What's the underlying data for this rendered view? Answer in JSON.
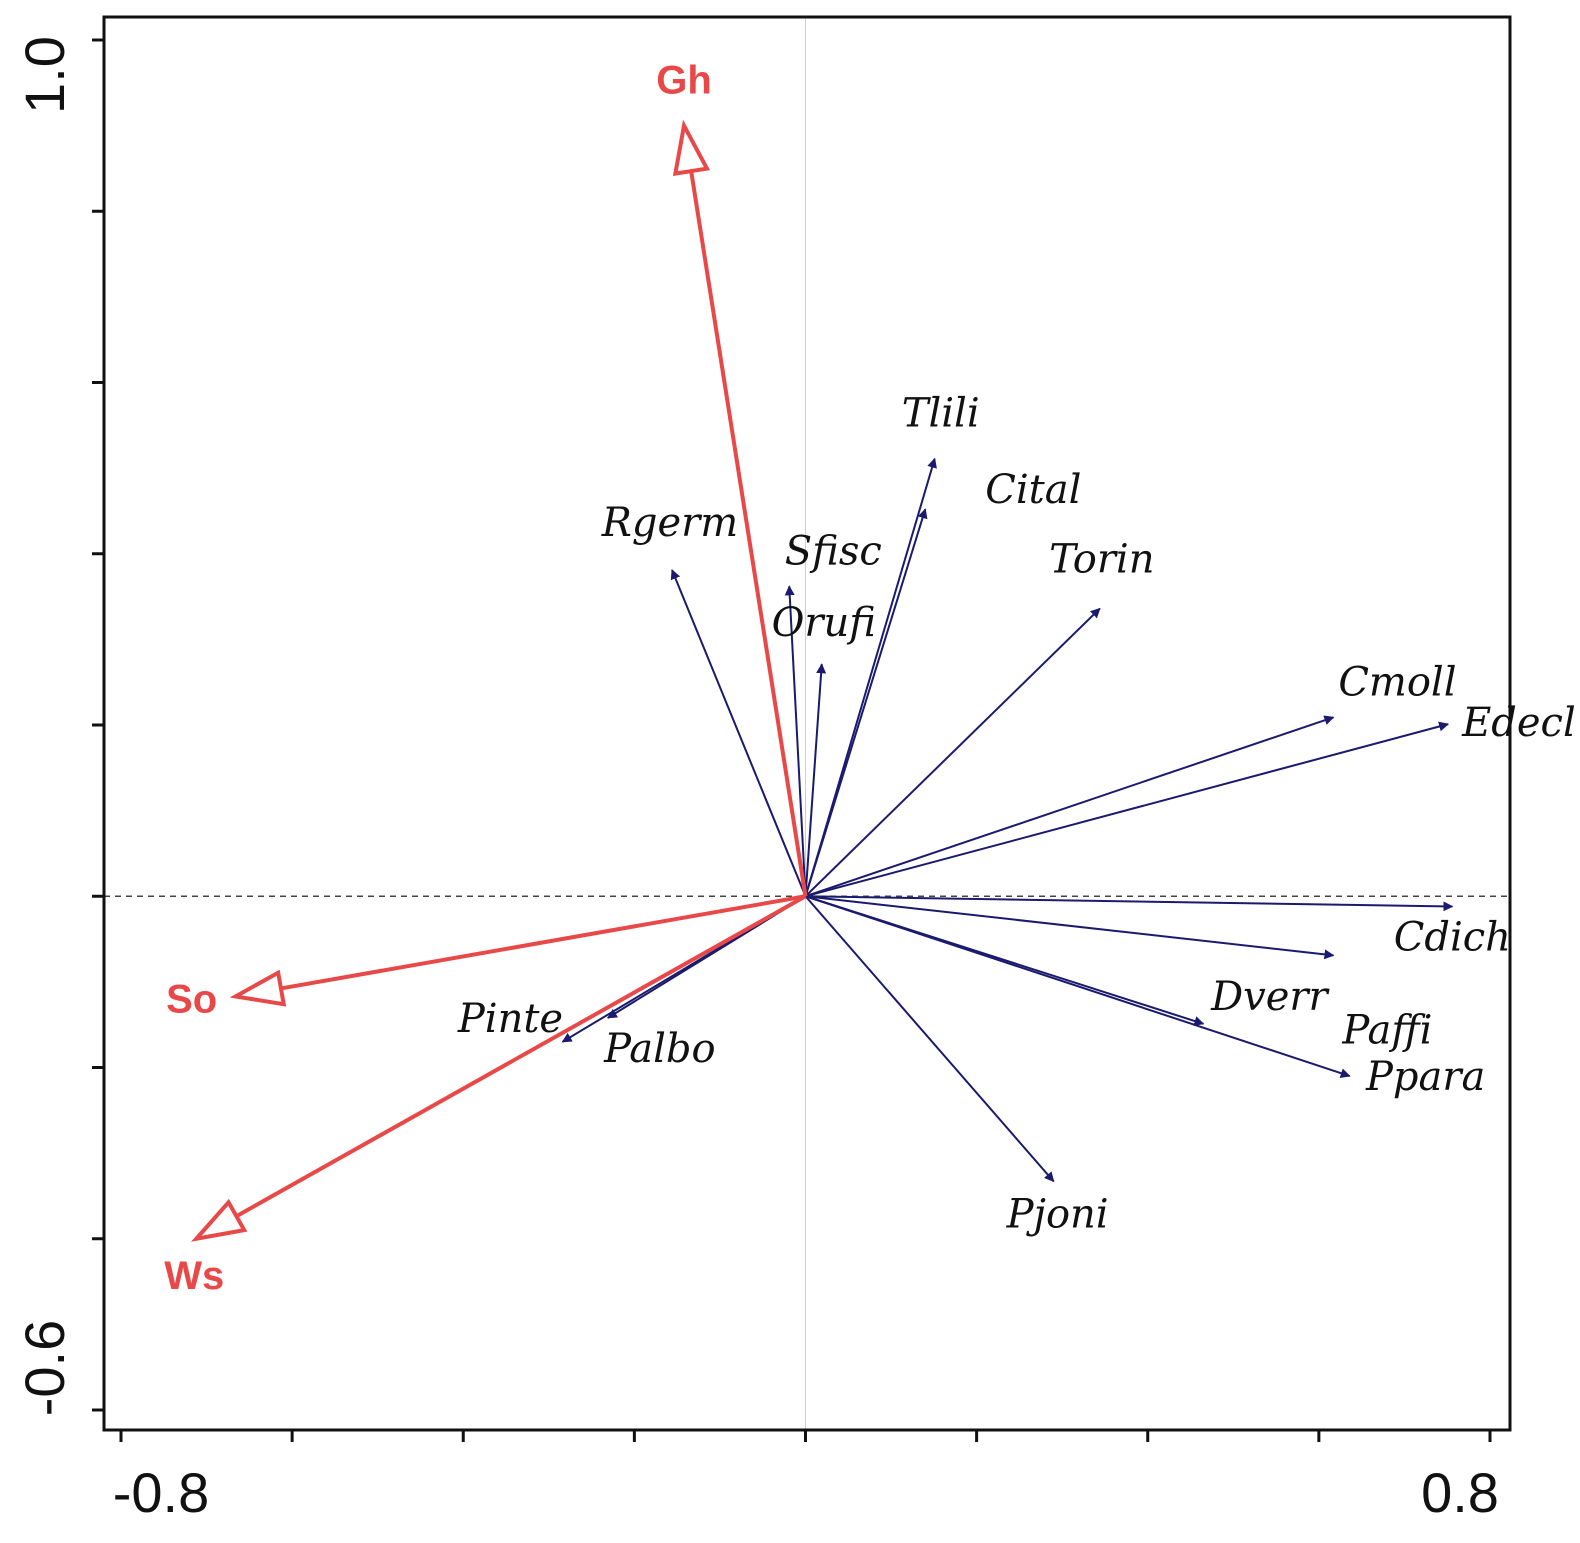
{
  "chart_data": {
    "type": "biplot",
    "title": "",
    "xlim": [
      -0.8,
      0.8
    ],
    "ylim": [
      -0.6,
      1.0
    ],
    "x_tick_labels": [
      "-0.8",
      "0.8"
    ],
    "y_tick_labels": [
      "1.0",
      "-0.6"
    ],
    "x_ticks": [
      -0.8,
      -0.6,
      -0.4,
      -0.2,
      0.0,
      0.2,
      0.4,
      0.6,
      0.8
    ],
    "y_ticks": [
      1.0,
      0.8,
      0.6,
      0.4,
      0.2,
      0.0,
      -0.2,
      -0.4,
      -0.6
    ],
    "zero_line": "dashed horizontal at y=0",
    "species_color": "#1a1a6e",
    "env_color": "#e84848",
    "species": [
      {
        "name": "Tlili",
        "x": 0.151,
        "y": 0.511
      },
      {
        "name": "Cital",
        "x": 0.14,
        "y": 0.452
      },
      {
        "name": "Rgerm",
        "x": -0.156,
        "y": 0.381
      },
      {
        "name": "Sfisc",
        "x": -0.019,
        "y": 0.362
      },
      {
        "name": "Orufi",
        "x": 0.019,
        "y": 0.271
      },
      {
        "name": "Torin",
        "x": 0.344,
        "y": 0.336
      },
      {
        "name": "Cmoll",
        "x": 0.617,
        "y": 0.209
      },
      {
        "name": "Edecl",
        "x": 0.751,
        "y": 0.201
      },
      {
        "name": "Cdich",
        "x": 0.756,
        "y": -0.012
      },
      {
        "name": "Paffi",
        "x": 0.617,
        "y": -0.069
      },
      {
        "name": "Dverr",
        "x": 0.465,
        "y": -0.149
      },
      {
        "name": "Ppara",
        "x": 0.636,
        "y": -0.21
      },
      {
        "name": "Pjoni",
        "x": 0.29,
        "y": -0.333
      },
      {
        "name": "Pinte",
        "x": -0.284,
        "y": -0.17
      },
      {
        "name": "Palbo",
        "x": -0.231,
        "y": -0.142
      }
    ],
    "env": [
      {
        "name": "Gh",
        "x": -0.142,
        "y": 0.9
      },
      {
        "name": "So",
        "x": -0.666,
        "y": -0.117
      },
      {
        "name": "Ws",
        "x": -0.712,
        "y": -0.4
      }
    ]
  }
}
